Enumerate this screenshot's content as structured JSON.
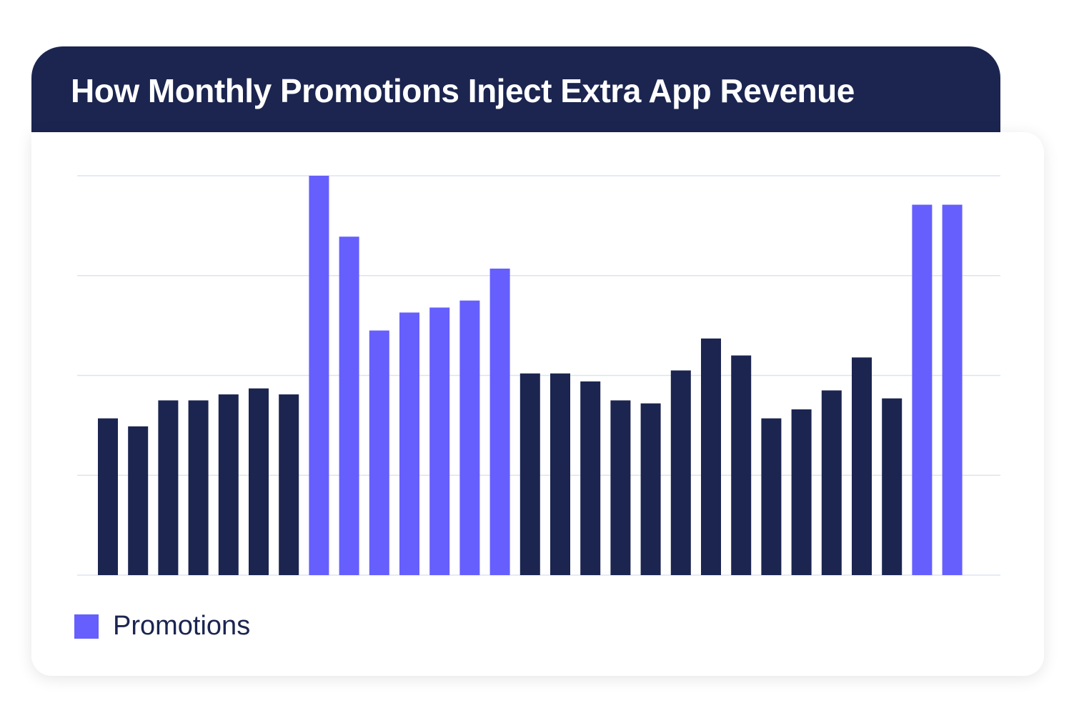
{
  "chart_data": {
    "type": "bar",
    "title": "How Monthly Promotions Inject Extra App Revenue",
    "xlabel": "",
    "ylabel": "",
    "ylim": [
      0,
      4
    ],
    "grid": true,
    "gridlines": [
      0,
      1,
      2,
      3,
      4
    ],
    "legend_placement": "bottom-left",
    "legend": [
      {
        "name": "Promotions",
        "color": "#665ffd"
      }
    ],
    "values": [
      1.57,
      1.49,
      1.75,
      1.75,
      1.81,
      1.87,
      1.81,
      4.0,
      3.39,
      2.45,
      2.63,
      2.68,
      2.75,
      3.07,
      2.02,
      2.02,
      1.94,
      1.75,
      1.72,
      2.05,
      2.37,
      2.2,
      1.57,
      1.66,
      1.85,
      2.18,
      1.77,
      3.71,
      3.71
    ],
    "promotion": [
      false,
      false,
      false,
      false,
      false,
      false,
      false,
      true,
      true,
      true,
      true,
      true,
      true,
      true,
      false,
      false,
      false,
      false,
      false,
      false,
      false,
      false,
      false,
      false,
      false,
      false,
      false,
      true,
      true
    ],
    "colors": {
      "regular": "#1b2550",
      "promotion": "#665ffd",
      "grid": "#dde3f0"
    }
  }
}
